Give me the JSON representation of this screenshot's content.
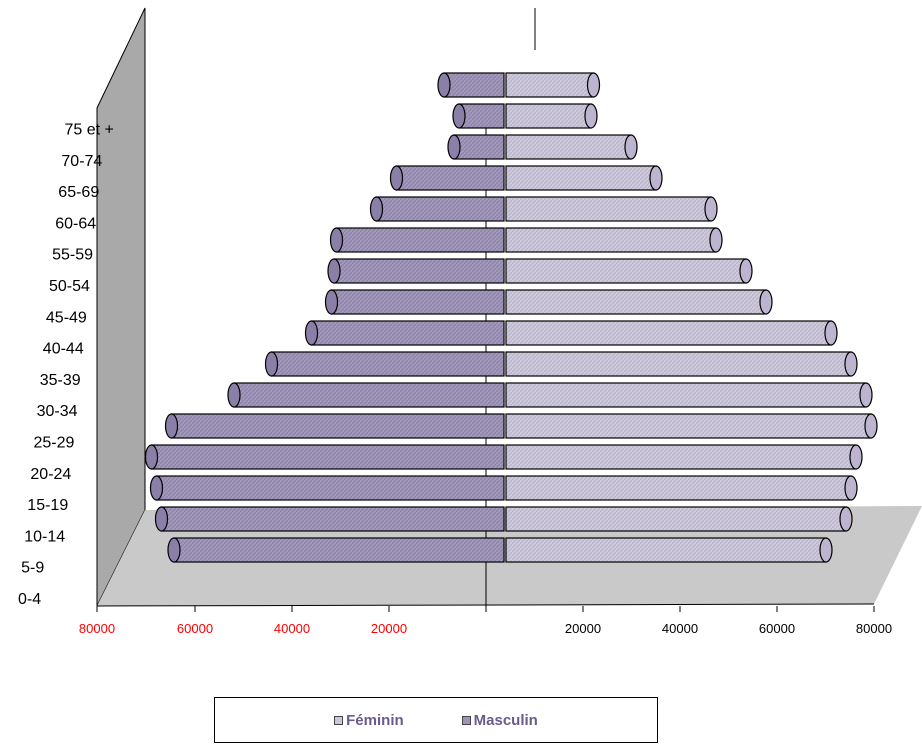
{
  "chart_data": {
    "type": "bar",
    "subtype": "population-pyramid-3d-cylinder",
    "categories": [
      "0-4",
      "5-9",
      "10-14",
      "15-19",
      "20-24",
      "25-29",
      "30-34",
      "35-39",
      "40-44",
      "45-49",
      "50-54",
      "55-59",
      "60-64",
      "65-69",
      "70-74",
      "75 et +"
    ],
    "series": [
      {
        "name": "Féminin",
        "color": "#cdc7db",
        "values": [
          64000,
          68000,
          69000,
          70000,
          73000,
          72000,
          69000,
          65000,
          52000,
          48000,
          42000,
          41000,
          30000,
          25000,
          17000,
          17500
        ]
      },
      {
        "name": "Masculin",
        "color": "#9e93b8",
        "values": [
          66000,
          68500,
          69500,
          70500,
          66500,
          54000,
          46500,
          38500,
          34500,
          34000,
          33500,
          25500,
          21500,
          10000,
          9000,
          12000
        ]
      }
    ],
    "x_ticks_left": [
      "80000",
      "60000",
      "40000",
      "20000"
    ],
    "x_ticks_right": [
      "20000",
      "40000",
      "60000",
      "80000"
    ],
    "xlim": [
      0,
      80000
    ],
    "legend_position": "bottom",
    "grid": false
  }
}
